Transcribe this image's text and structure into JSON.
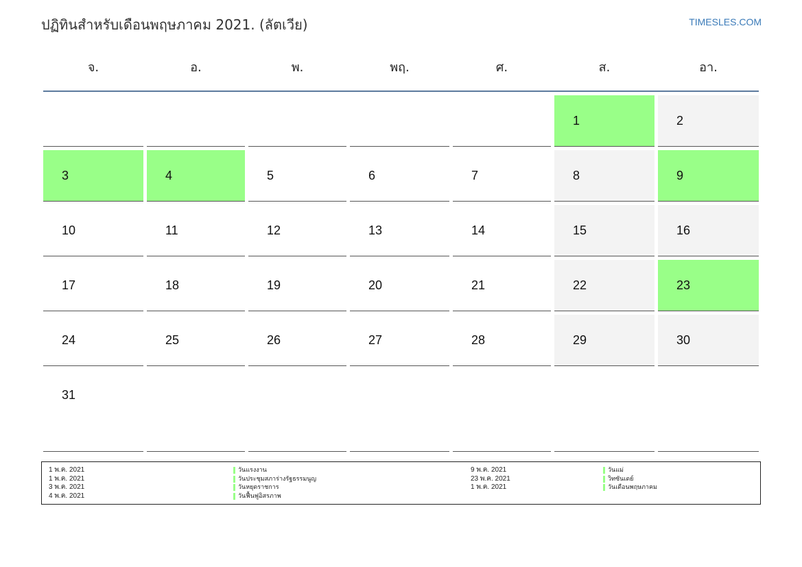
{
  "header": {
    "title": "ปฏิทินสำหรับเดือนพฤษภาคม 2021. (ลัตเวีย)",
    "site": "TIMESLES.COM"
  },
  "colors": {
    "holiday": "#99ff88",
    "weekend": "#f3f3f3",
    "header_rule": "#5b7a9d",
    "link": "#3a7ab8"
  },
  "calendar": {
    "weekdays": [
      "จ.",
      "อ.",
      "พ.",
      "พฤ.",
      "ศ.",
      "ส.",
      "อา."
    ],
    "weeks": [
      [
        {
          "day": "",
          "type": "empty"
        },
        {
          "day": "",
          "type": "empty"
        },
        {
          "day": "",
          "type": "empty"
        },
        {
          "day": "",
          "type": "empty"
        },
        {
          "day": "",
          "type": "empty"
        },
        {
          "day": "1",
          "type": "holiday"
        },
        {
          "day": "2",
          "type": "gray"
        }
      ],
      [
        {
          "day": "3",
          "type": "holiday"
        },
        {
          "day": "4",
          "type": "holiday"
        },
        {
          "day": "5",
          "type": "normal"
        },
        {
          "day": "6",
          "type": "normal"
        },
        {
          "day": "7",
          "type": "normal"
        },
        {
          "day": "8",
          "type": "gray"
        },
        {
          "day": "9",
          "type": "holiday"
        }
      ],
      [
        {
          "day": "10",
          "type": "normal"
        },
        {
          "day": "11",
          "type": "normal"
        },
        {
          "day": "12",
          "type": "normal"
        },
        {
          "day": "13",
          "type": "normal"
        },
        {
          "day": "14",
          "type": "normal"
        },
        {
          "day": "15",
          "type": "gray"
        },
        {
          "day": "16",
          "type": "gray"
        }
      ],
      [
        {
          "day": "17",
          "type": "normal"
        },
        {
          "day": "18",
          "type": "normal"
        },
        {
          "day": "19",
          "type": "normal"
        },
        {
          "day": "20",
          "type": "normal"
        },
        {
          "day": "21",
          "type": "normal"
        },
        {
          "day": "22",
          "type": "gray"
        },
        {
          "day": "23",
          "type": "holiday"
        }
      ],
      [
        {
          "day": "24",
          "type": "normal"
        },
        {
          "day": "25",
          "type": "normal"
        },
        {
          "day": "26",
          "type": "normal"
        },
        {
          "day": "27",
          "type": "normal"
        },
        {
          "day": "28",
          "type": "normal"
        },
        {
          "day": "29",
          "type": "gray"
        },
        {
          "day": "30",
          "type": "gray"
        }
      ],
      [
        {
          "day": "31",
          "type": "normal"
        },
        {
          "day": "",
          "type": "empty"
        },
        {
          "day": "",
          "type": "empty"
        },
        {
          "day": "",
          "type": "empty"
        },
        {
          "day": "",
          "type": "empty"
        },
        {
          "day": "",
          "type": "empty"
        },
        {
          "day": "",
          "type": "empty"
        }
      ]
    ]
  },
  "legend": {
    "left_dates": [
      "1 พ.ค. 2021",
      "1 พ.ค. 2021",
      "3 พ.ค. 2021",
      "4 พ.ค. 2021"
    ],
    "left_names": [
      "วันแรงงาน",
      "วันประชุมสภาร่างรัฐธรรมนูญ",
      "วันหยุดราชการ",
      "วันฟื้นฟูอิสรภาพ"
    ],
    "right_dates": [
      "9 พ.ค. 2021",
      "23 พ.ค. 2021",
      "1 พ.ค. 2021"
    ],
    "right_names": [
      "วันแม่",
      "วิทซันเดย์",
      "วันเดือนพฤษภาคม"
    ]
  }
}
